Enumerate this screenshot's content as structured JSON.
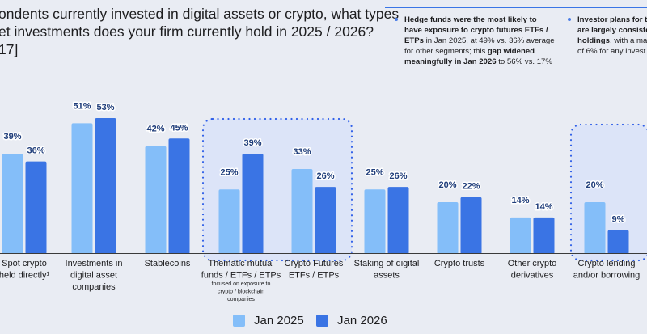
{
  "question": {
    "line1": "ondents currently invested in digital assets or crypto, what types",
    "line2": "et investments does your firm currently hold in 2025 / 2026?",
    "line3": "17]"
  },
  "callouts": [
    {
      "segments": [
        {
          "text": "Hedge funds were the most likely to have exposure to crypto futures ETFs / ETPs",
          "bold": true
        },
        {
          "text": " in Jan 2025, at 49% vs. 36% average for other segments; this ",
          "bold": false
        },
        {
          "text": "gap widened meaningfully in Jan 2026",
          "bold": true
        },
        {
          "text": " to 56% vs. 17%",
          "bold": false
        }
      ]
    },
    {
      "lines": [
        {
          "segments": [
            {
              "text": "Investor plans for th",
              "bold": true
            }
          ]
        },
        {
          "segments": [
            {
              "text": "are largely consiste",
              "bold": true
            }
          ]
        },
        {
          "segments": [
            {
              "text": "holdings",
              "bold": true
            },
            {
              "text": ", with a max",
              "bold": false
            }
          ]
        },
        {
          "segments": [
            {
              "text": "of 6% for any invest",
              "bold": false
            }
          ]
        }
      ]
    }
  ],
  "colors": {
    "jan2025": "#84bef9",
    "jan2026": "#3a74e4",
    "highlight_fill": "#dce4f8",
    "highlight_border": "#2f5fe8",
    "value_label": "#1f3d7a"
  },
  "chart_data": {
    "type": "bar",
    "title": "",
    "xlabel": "",
    "ylabel": "",
    "ylim": [
      0,
      60
    ],
    "grid": false,
    "legend_position": "bottom-center",
    "categories": [
      {
        "lines": [
          "Spot crypto",
          "held directly¹"
        ],
        "note": []
      },
      {
        "lines": [
          "Investments in",
          "digital asset",
          "companies"
        ],
        "note": []
      },
      {
        "lines": [
          "Stablecoins"
        ],
        "note": []
      },
      {
        "lines": [
          "Thematic mutual",
          "funds / ETFs / ETPs"
        ],
        "note": [
          "focused on exposure to",
          "crypto / blockchain",
          "companies"
        ]
      },
      {
        "lines": [
          "Crypto Futures",
          "ETFs / ETPs"
        ],
        "note": []
      },
      {
        "lines": [
          "Staking of digital",
          "assets"
        ],
        "note": []
      },
      {
        "lines": [
          "Crypto trusts"
        ],
        "note": []
      },
      {
        "lines": [
          "Other crypto",
          "derivatives"
        ],
        "note": []
      },
      {
        "lines": [
          "Crypto lending",
          "and/or borrowing"
        ],
        "note": []
      }
    ],
    "series": [
      {
        "name": "Jan 2025",
        "values": [
          39,
          51,
          42,
          25,
          33,
          25,
          20,
          14,
          20
        ],
        "labels": [
          "39%",
          "51%",
          "42%",
          "25%",
          "33%",
          "25%",
          "20%",
          "14%",
          "20%"
        ]
      },
      {
        "name": "Jan 2026",
        "values": [
          36,
          53,
          45,
          39,
          26,
          26,
          22,
          14,
          9
        ],
        "labels": [
          "36%",
          "53%",
          "45%",
          "39%",
          "26%",
          "26%",
          "22%",
          "14%",
          "9%"
        ]
      }
    ],
    "highlighted_groups": [
      [
        3,
        4
      ],
      [
        8
      ]
    ]
  }
}
